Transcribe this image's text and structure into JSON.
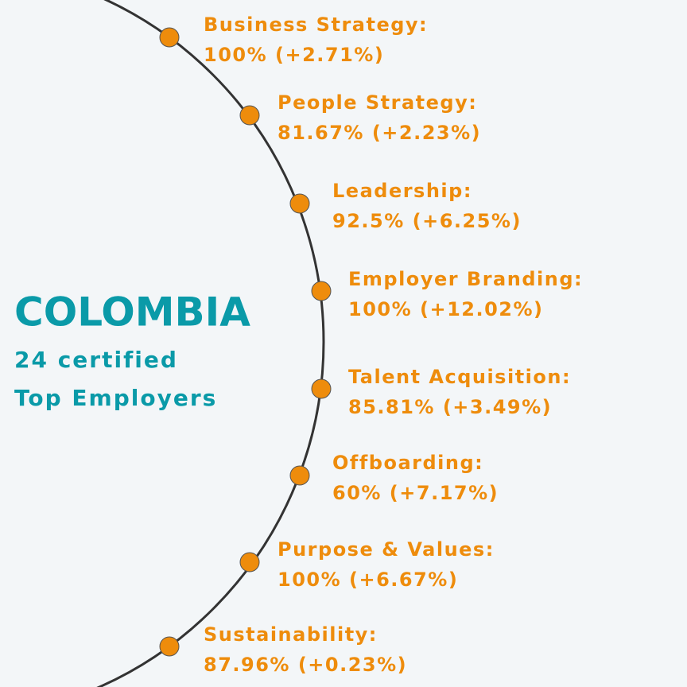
{
  "title": "COLOMBIA",
  "subtitle": [
    "24 certified",
    "Top Employers"
  ],
  "items": [
    {
      "label": "Business Strategy:",
      "value": "100% (+2.71%)"
    },
    {
      "label": "People Strategy:",
      "value": "81.67% (+2.23%)"
    },
    {
      "label": "Leadership:",
      "value": "92.5% (+6.25%)"
    },
    {
      "label": "Employer Branding:",
      "value": "100% (+12.02%)"
    },
    {
      "label": "Talent Acquisition:",
      "value": "85.81% (+3.49%)"
    },
    {
      "label": "Offboarding:",
      "value": "60% (+7.17%)"
    },
    {
      "label": "Purpose & Values:",
      "value": "100% (+6.67%)"
    },
    {
      "label": "Sustainability:",
      "value": "87.96% (+0.23%)"
    }
  ]
}
